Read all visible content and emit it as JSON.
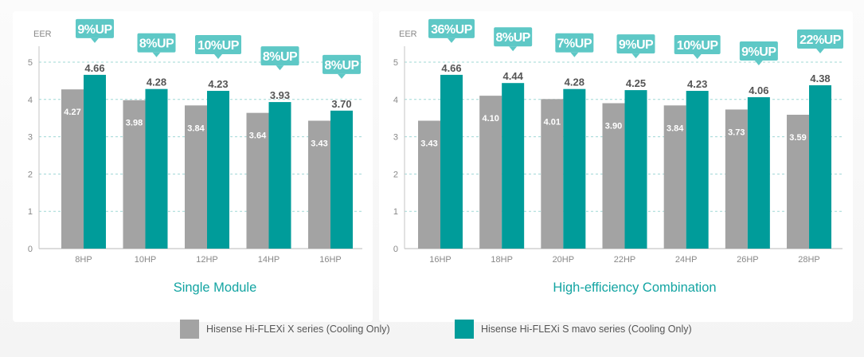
{
  "colors": {
    "series_a": "#a3a3a3",
    "series_b": "#009c9a",
    "badge": "#5ec8c6",
    "grid": "#9fd8d6",
    "axis_text": "#888888",
    "title": "#13a4a2"
  },
  "legend": [
    {
      "label": "Hisense Hi-FLEXi X series (Cooling Only)",
      "color": "#a3a3a3"
    },
    {
      "label": "Hisense Hi-FLEXi S mavo series (Cooling Only)",
      "color": "#009c9a"
    }
  ],
  "chart_data": [
    {
      "type": "bar",
      "title": "Single Module",
      "ylabel": "EER",
      "ylim": [
        0,
        5
      ],
      "yticks": [
        "0",
        "1",
        "2",
        "3",
        "4",
        "5"
      ],
      "grid": true,
      "categories": [
        "8HP",
        "10HP",
        "12HP",
        "14HP",
        "16HP"
      ],
      "series": [
        {
          "name": "Hisense Hi-FLEXi X series (Cooling Only)",
          "values": [
            4.27,
            3.98,
            3.84,
            3.64,
            3.43
          ],
          "labels": [
            "4.27",
            "3.98",
            "3.84",
            "3.64",
            "3.43"
          ]
        },
        {
          "name": "Hisense Hi-FLEXi S mavo series (Cooling Only)",
          "values": [
            4.66,
            4.28,
            4.23,
            3.93,
            3.7
          ],
          "labels": [
            "4.66",
            "4.28",
            "4.23",
            "3.93",
            "3.70"
          ]
        }
      ],
      "annotations": [
        "9%UP",
        "8%UP",
        "10%UP",
        "8%UP",
        "8%UP"
      ]
    },
    {
      "type": "bar",
      "title": "High-efficiency Combination",
      "ylabel": "EER",
      "ylim": [
        0,
        5
      ],
      "yticks": [
        "0",
        "1",
        "2",
        "3",
        "4",
        "5"
      ],
      "grid": true,
      "categories": [
        "16HP",
        "18HP",
        "20HP",
        "22HP",
        "24HP",
        "26HP",
        "28HP"
      ],
      "series": [
        {
          "name": "Hisense Hi-FLEXi X series (Cooling Only)",
          "values": [
            3.43,
            4.1,
            4.01,
            3.9,
            3.84,
            3.73,
            3.59
          ],
          "labels": [
            "3.43",
            "4.10",
            "4.01",
            "3.90",
            "3.84",
            "3.73",
            "3.59"
          ]
        },
        {
          "name": "Hisense Hi-FLEXi S mavo series (Cooling Only)",
          "values": [
            4.66,
            4.44,
            4.28,
            4.25,
            4.23,
            4.06,
            4.38
          ],
          "labels": [
            "4.66",
            "4.44",
            "4.28",
            "4.25",
            "4.23",
            "4.06",
            "4.38"
          ]
        }
      ],
      "annotations": [
        "36%UP",
        "8%UP",
        "7%UP",
        "9%UP",
        "10%UP",
        "9%UP",
        "22%UP"
      ]
    }
  ]
}
